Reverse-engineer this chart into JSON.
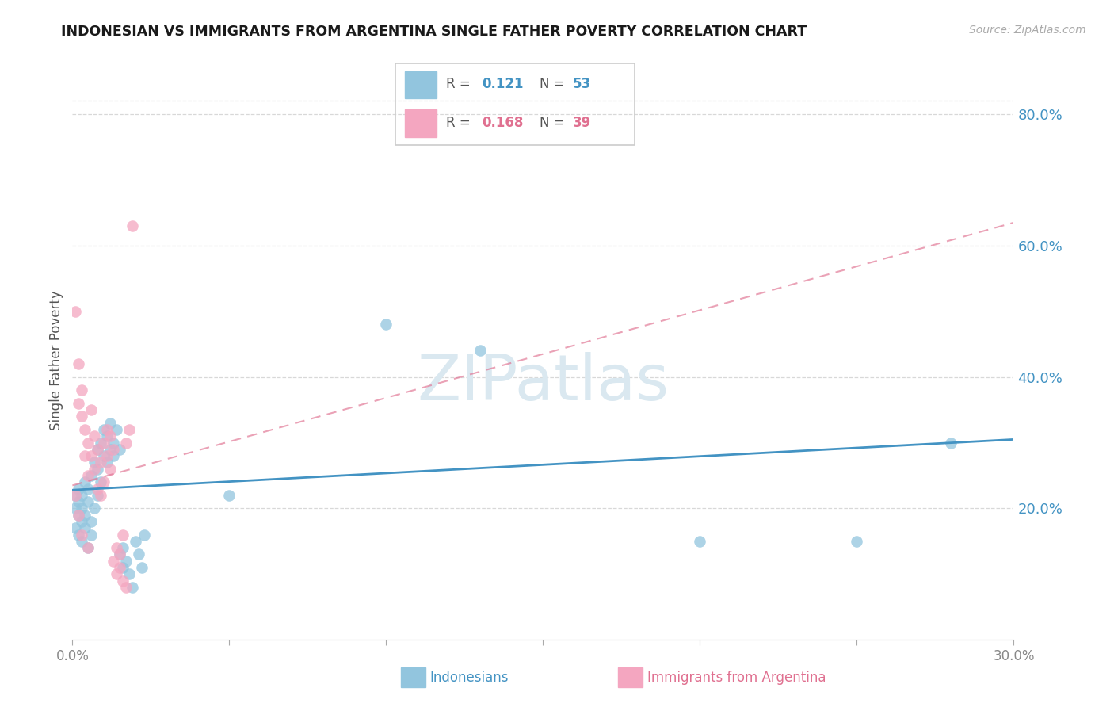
{
  "title": "INDONESIAN VS IMMIGRANTS FROM ARGENTINA SINGLE FATHER POVERTY CORRELATION CHART",
  "source": "Source: ZipAtlas.com",
  "ylabel": "Single Father Poverty",
  "xlim": [
    0.0,
    0.3
  ],
  "ylim": [
    0.0,
    0.85
  ],
  "xticks": [
    0.0,
    0.05,
    0.1,
    0.15,
    0.2,
    0.25,
    0.3
  ],
  "xtick_labels": [
    "0.0%",
    "",
    "",
    "",
    "",
    "",
    "30.0%"
  ],
  "ytick_labels_right": [
    "20.0%",
    "40.0%",
    "60.0%",
    "80.0%"
  ],
  "ytick_vals_right": [
    0.2,
    0.4,
    0.6,
    0.8
  ],
  "legend_r1": "0.121",
  "legend_n1": "53",
  "legend_r2": "0.168",
  "legend_n2": "39",
  "blue_color": "#92c5de",
  "pink_color": "#f4a6c0",
  "blue_line_color": "#4393c3",
  "pink_line_color": "#e07090",
  "watermark": "ZIPatlas",
  "watermark_color": "#dae8f0",
  "indonesian_x": [
    0.001,
    0.001,
    0.001,
    0.002,
    0.002,
    0.002,
    0.002,
    0.003,
    0.003,
    0.003,
    0.003,
    0.004,
    0.004,
    0.004,
    0.005,
    0.005,
    0.005,
    0.006,
    0.006,
    0.006,
    0.007,
    0.007,
    0.008,
    0.008,
    0.008,
    0.009,
    0.009,
    0.01,
    0.01,
    0.011,
    0.011,
    0.012,
    0.012,
    0.013,
    0.013,
    0.014,
    0.015,
    0.015,
    0.016,
    0.016,
    0.017,
    0.018,
    0.019,
    0.02,
    0.021,
    0.022,
    0.023,
    0.05,
    0.1,
    0.13,
    0.2,
    0.25,
    0.28
  ],
  "indonesian_y": [
    0.2,
    0.22,
    0.17,
    0.19,
    0.21,
    0.16,
    0.23,
    0.18,
    0.2,
    0.15,
    0.22,
    0.19,
    0.24,
    0.17,
    0.21,
    0.14,
    0.23,
    0.18,
    0.25,
    0.16,
    0.27,
    0.2,
    0.26,
    0.22,
    0.29,
    0.24,
    0.3,
    0.28,
    0.32,
    0.31,
    0.27,
    0.29,
    0.33,
    0.3,
    0.28,
    0.32,
    0.29,
    0.13,
    0.11,
    0.14,
    0.12,
    0.1,
    0.08,
    0.15,
    0.13,
    0.11,
    0.16,
    0.22,
    0.48,
    0.44,
    0.15,
    0.15,
    0.3
  ],
  "argentina_x": [
    0.001,
    0.001,
    0.002,
    0.002,
    0.002,
    0.003,
    0.003,
    0.003,
    0.004,
    0.004,
    0.005,
    0.005,
    0.005,
    0.006,
    0.006,
    0.007,
    0.007,
    0.008,
    0.008,
    0.009,
    0.009,
    0.01,
    0.01,
    0.011,
    0.011,
    0.012,
    0.012,
    0.013,
    0.013,
    0.014,
    0.014,
    0.015,
    0.015,
    0.016,
    0.016,
    0.017,
    0.017,
    0.018,
    0.019
  ],
  "argentina_y": [
    0.22,
    0.5,
    0.42,
    0.19,
    0.36,
    0.34,
    0.16,
    0.38,
    0.32,
    0.28,
    0.3,
    0.14,
    0.25,
    0.28,
    0.35,
    0.31,
    0.26,
    0.29,
    0.23,
    0.27,
    0.22,
    0.3,
    0.24,
    0.32,
    0.28,
    0.26,
    0.31,
    0.12,
    0.29,
    0.14,
    0.1,
    0.13,
    0.11,
    0.09,
    0.16,
    0.3,
    0.08,
    0.32,
    0.63
  ]
}
